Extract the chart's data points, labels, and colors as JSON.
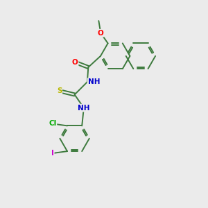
{
  "background_color": "#ebebeb",
  "bond_color": "#3d7a3d",
  "atom_colors": {
    "O": "#ff0000",
    "N": "#0000cc",
    "S": "#b8b800",
    "Cl": "#00aa00",
    "I": "#cc00cc",
    "C": "#3d7a3d"
  },
  "figsize": [
    3.0,
    3.0
  ],
  "dpi": 100
}
